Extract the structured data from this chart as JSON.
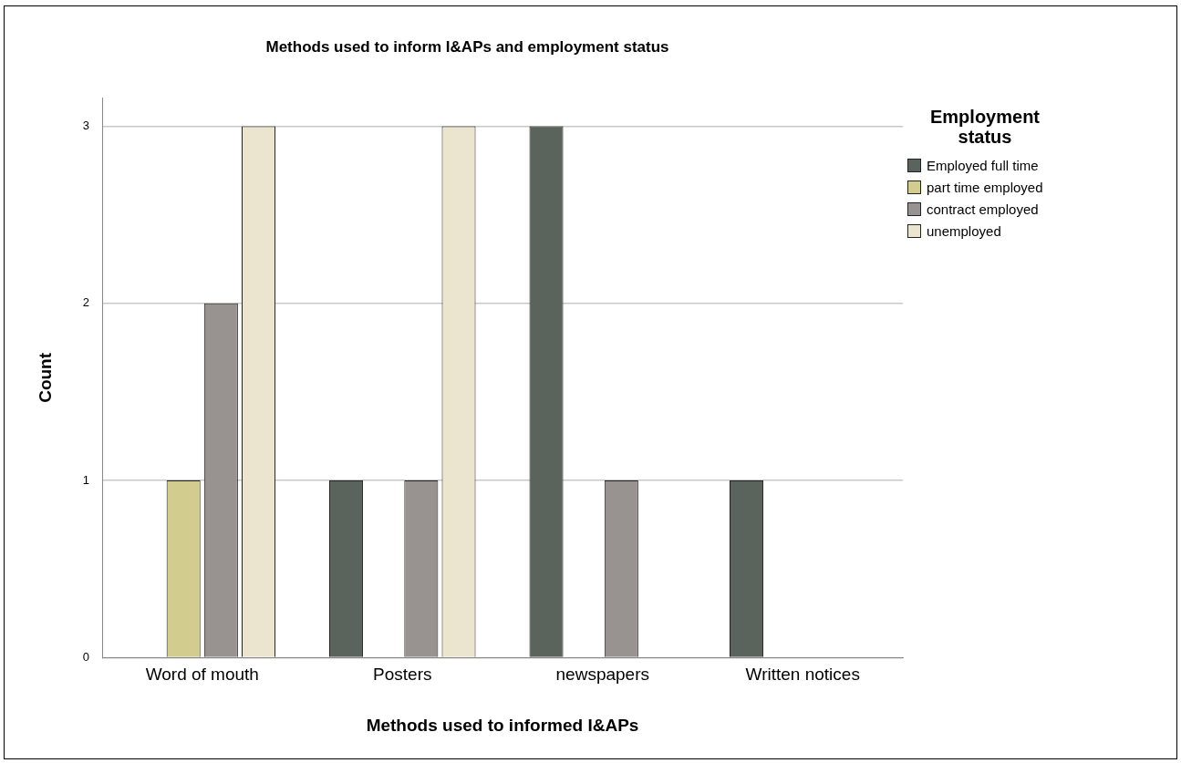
{
  "chart_data": {
    "type": "bar",
    "title": "Methods used to inform I&APs and employment status",
    "xlabel": "Methods used to informed I&APs",
    "ylabel": "Count",
    "legend_title": "Employment status",
    "categories": [
      "Word of mouth",
      "Posters",
      "newspapers",
      "Written notices"
    ],
    "series": [
      {
        "name": "Employed full time",
        "color": "#5a635c",
        "values": [
          0,
          1,
          3,
          1
        ]
      },
      {
        "name": "part time employed",
        "color": "#d3cc8f",
        "values": [
          1,
          0,
          0,
          0
        ]
      },
      {
        "name": "contract employed",
        "color": "#989391",
        "values": [
          2,
          1,
          1,
          0
        ]
      },
      {
        "name": "unemployed",
        "color": "#ebe5d0",
        "values": [
          3,
          3,
          0,
          0
        ]
      }
    ],
    "ylim": [
      0,
      3.16
    ],
    "yticks": [
      0,
      1,
      2,
      3
    ],
    "grid": "y",
    "legend": "top right"
  }
}
